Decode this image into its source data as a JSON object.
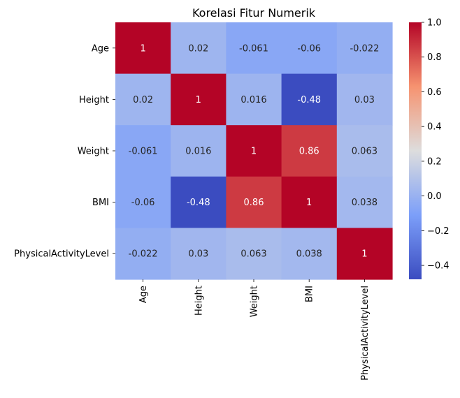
{
  "chart_data": {
    "type": "heatmap",
    "title": "Korelasi Fitur Numerik",
    "xlabel": "",
    "ylabel": "",
    "rows": [
      "Age",
      "Height",
      "Weight",
      "BMI",
      "PhysicalActivityLevel"
    ],
    "columns": [
      "Age",
      "Height",
      "Weight",
      "BMI",
      "PhysicalActivityLevel"
    ],
    "values": [
      [
        1,
        0.02,
        -0.061,
        -0.06,
        -0.022
      ],
      [
        0.02,
        1,
        0.016,
        -0.48,
        0.03
      ],
      [
        -0.061,
        0.016,
        1,
        0.86,
        0.063
      ],
      [
        -0.06,
        -0.48,
        0.86,
        1,
        0.038
      ],
      [
        -0.022,
        0.03,
        0.063,
        0.038,
        1
      ]
    ],
    "annotations": [
      [
        "1",
        "0.02",
        "-0.061",
        "-0.06",
        "-0.022"
      ],
      [
        "0.02",
        "1",
        "0.016",
        "-0.48",
        "0.03"
      ],
      [
        "-0.061",
        "0.016",
        "1",
        "0.86",
        "0.063"
      ],
      [
        "-0.06",
        "-0.48",
        "0.86",
        "1",
        "0.038"
      ],
      [
        "-0.022",
        "0.03",
        "0.063",
        "0.038",
        "1"
      ]
    ],
    "colormap": "coolwarm",
    "colorbar": {
      "range": [
        -0.48,
        1.0
      ],
      "ticks": [
        -0.4,
        -0.2,
        0.0,
        0.2,
        0.4,
        0.6,
        0.8,
        1.0
      ],
      "tick_labels": [
        "−0.4",
        "−0.2",
        "0.0",
        "0.2",
        "0.4",
        "0.6",
        "0.8",
        "1.0"
      ]
    },
    "colors": {
      "low": "#3b4cc0",
      "mid": "#dddddd",
      "high": "#b40426",
      "text_on_dark": "#ffffff",
      "text_on_light": "#262626"
    }
  }
}
